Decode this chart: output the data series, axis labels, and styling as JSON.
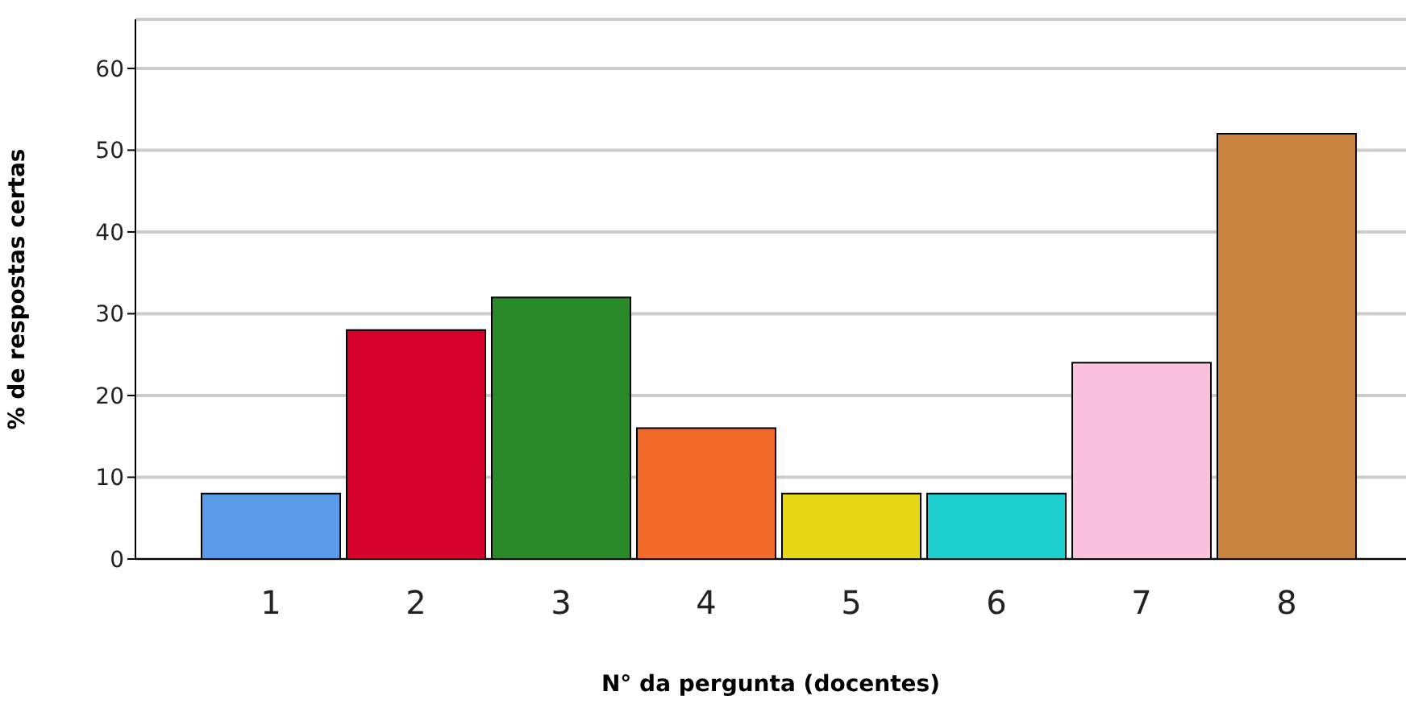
{
  "chart_data": {
    "type": "bar",
    "xlabel": "N° da pergunta (docentes)",
    "ylabel": "% de respostas certas",
    "categories": [
      "1",
      "2",
      "3",
      "4",
      "5",
      "6",
      "7",
      "8"
    ],
    "values": [
      8,
      28,
      32,
      16,
      8,
      8,
      24,
      52
    ],
    "colors": [
      "#5a9be8",
      "#d6002c",
      "#2a8a2a",
      "#f26a2a",
      "#e6d814",
      "#1ecfcf",
      "#fbc2e0",
      "#c8843e"
    ],
    "ylim": [
      0,
      66
    ],
    "yticks": [
      0,
      10,
      20,
      30,
      40,
      50,
      60
    ],
    "grid": "y"
  }
}
